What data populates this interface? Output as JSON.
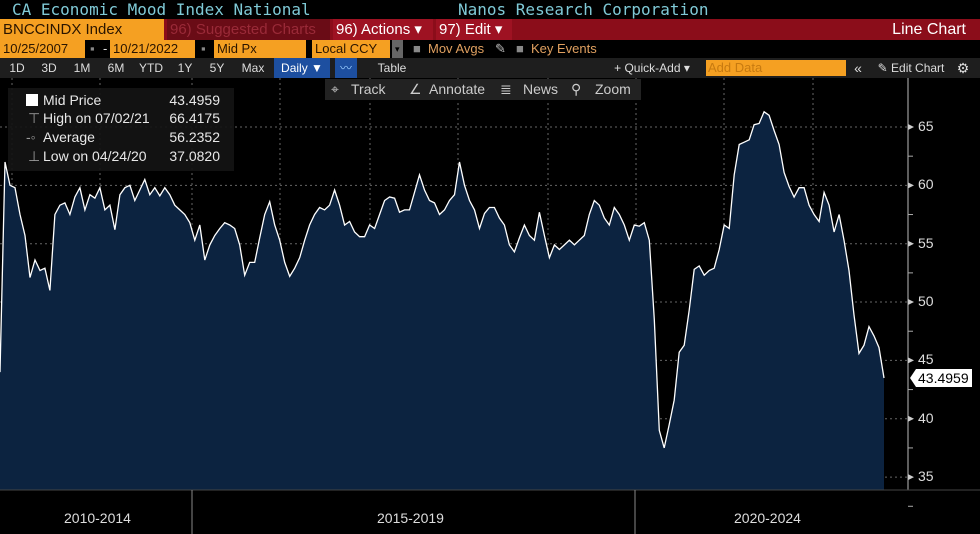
{
  "header": {
    "title": "CA Economic Mood Index National",
    "source": "Nanos Research Corporation"
  },
  "toolbar": {
    "ticker": "BNCCINDX Index",
    "suggested": "96) Suggested Charts",
    "actions": "96) Actions ▾",
    "edit": "97) Edit ▾",
    "chart_type": "Line Chart"
  },
  "params": {
    "start_date": "10/25/2007",
    "dash": "-",
    "end_date": "10/21/2022",
    "field": "Mid Px",
    "currency": "Local CCY",
    "mov_avgs": "Mov Avgs",
    "key_events": "Key Events"
  },
  "ranges": [
    "1D",
    "3D",
    "1M",
    "6M",
    "YTD",
    "1Y",
    "5Y",
    "Max"
  ],
  "period": "Daily ▼",
  "table_label": "Table",
  "quick_add": "+ Quick-Add ▾",
  "add_data_placeholder": "Add Data",
  "edit_chart": "✎ Edit Chart",
  "collapse": "«",
  "gear": "⚙",
  "chart_tools": {
    "track": "Track",
    "annotate": "Annotate",
    "news": "News",
    "zoom": "Zoom"
  },
  "legend": {
    "mid_label": "Mid Price",
    "mid_value": "43.4959",
    "high_label": "High on 07/02/21",
    "high_value": "66.4175",
    "avg_label": "Average",
    "avg_value": "56.2352",
    "low_label": "Low on 04/24/20",
    "low_value": "37.0820"
  },
  "colors": {
    "accent": "#f5a022",
    "bar_red": "#8b0d1a",
    "fill": "#0c2340",
    "line": "#ffffff",
    "title": "#7fc9d6"
  },
  "chart_data": {
    "type": "area",
    "title": "CA Economic Mood Index National",
    "ylim": [
      35,
      67
    ],
    "yticks": [
      "65",
      "60",
      "55",
      "50",
      "45",
      "40",
      "35"
    ],
    "x_period_labels": [
      "2010-2014",
      "2015-2019",
      "2020-2024"
    ],
    "last_value_label": "43.4959",
    "grid": true,
    "values": [
      44,
      62,
      60.0,
      59.8,
      57.5,
      55.7,
      52.1,
      53.6,
      52.7,
      52.9,
      51.0,
      57.5,
      58.3,
      58.5,
      57.5,
      59.0,
      59.8,
      57.9,
      59.2,
      58.9,
      59.8,
      57.9,
      58.3,
      56.2,
      59.2,
      59.8,
      60.0,
      58.7,
      59.6,
      60.5,
      59.2,
      59.8,
      59.1,
      59.8,
      59.2,
      58.3,
      57.9,
      57.5,
      56.8,
      55.3,
      56.6,
      53.6,
      54.9,
      55.7,
      56.3,
      56.8,
      56.6,
      56.3,
      54.9,
      52.3,
      53.4,
      53.4,
      55.5,
      57.5,
      58.6,
      56.6,
      55.3,
      53.4,
      52.2,
      52.9,
      53.8,
      55.3,
      56.6,
      57.5,
      58.1,
      57.9,
      58.3,
      59.6,
      58.3,
      56.6,
      56.9,
      56.0,
      55.6,
      55.6,
      56.6,
      56.3,
      57.5,
      58.7,
      59.0,
      58.9,
      57.7,
      57.9,
      57.9,
      59.4,
      60.9,
      59.6,
      58.7,
      58.5,
      57.5,
      57.9,
      58.7,
      59.2,
      62.0,
      60.0,
      58.7,
      57.9,
      56.3,
      57.6,
      58.1,
      58.1,
      57.2,
      56.6,
      54.9,
      54.3,
      55.5,
      56.6,
      55.7,
      55.3,
      57.7,
      55.7,
      53.8,
      54.9,
      54.5,
      54.9,
      55.3,
      54.9,
      55.3,
      55.7,
      57.5,
      58.7,
      58.3,
      57.2,
      56.6,
      58.1,
      57.5,
      56.6,
      55.3,
      56.6,
      56.5,
      56.8,
      55.3,
      48.5,
      39.0,
      37.5,
      39.5,
      41.6,
      45.7,
      46.3,
      49.3,
      52.8,
      53.1,
      52.3,
      52.7,
      52.9,
      54.5,
      56.6,
      56.3,
      60.9,
      63.5,
      63.7,
      63.9,
      65.2,
      65.3,
      66.3,
      66.0,
      64.7,
      63.5,
      61.1,
      59.9,
      59.0,
      59.8,
      59.8,
      58.3,
      57.5,
      56.9,
      59.4,
      58.3,
      56.0,
      57.5,
      55.3,
      52.7,
      48.9,
      45.6,
      46.3,
      47.9,
      47.1,
      46.1,
      43.4959
    ]
  }
}
